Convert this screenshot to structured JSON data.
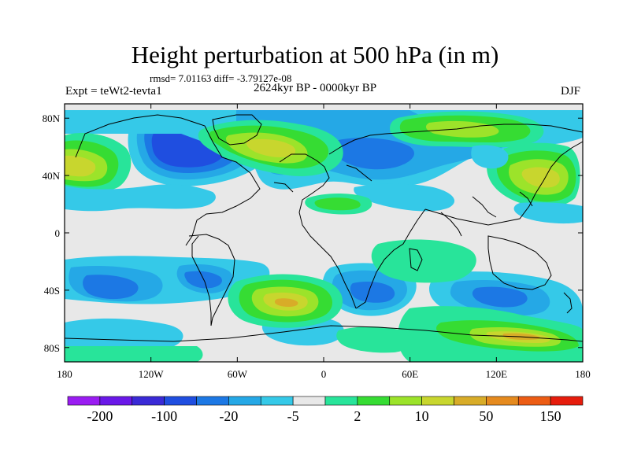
{
  "title": "Height perturbation at 500 hPa (in m)",
  "stats": "rmsd= 7.01163 diff= -3.79127e-08",
  "experiment": "Expt = teWt2-tevta1",
  "period": "2624kyr BP - 0000kyr BP",
  "season": "DJF",
  "axes": {
    "lat_labels": [
      "80N",
      "40N",
      "0",
      "40S",
      "80S"
    ],
    "lat_values": [
      80,
      40,
      0,
      -40,
      -80
    ],
    "lon_labels": [
      "180",
      "120W",
      "60W",
      "0",
      "60E",
      "120E",
      "180"
    ],
    "lon_values": [
      -180,
      -120,
      -60,
      0,
      60,
      120,
      180
    ]
  },
  "colorbar": {
    "colors": [
      "#9a1cf2",
      "#6a18e8",
      "#3a2ad6",
      "#1f4ee0",
      "#1c78e4",
      "#25a8e6",
      "#35c9e8",
      "#e8e8e8",
      "#28e49a",
      "#36dc33",
      "#9ce32a",
      "#c8d62e",
      "#d8ac28",
      "#e58a1e",
      "#ec5c14",
      "#e61c0c"
    ],
    "labels": [
      "-200",
      "-100",
      "-20",
      "-5",
      "2",
      "10",
      "50",
      "150"
    ]
  },
  "colors": {
    "neutral": "#e8e8e8",
    "coast": "#000000"
  }
}
